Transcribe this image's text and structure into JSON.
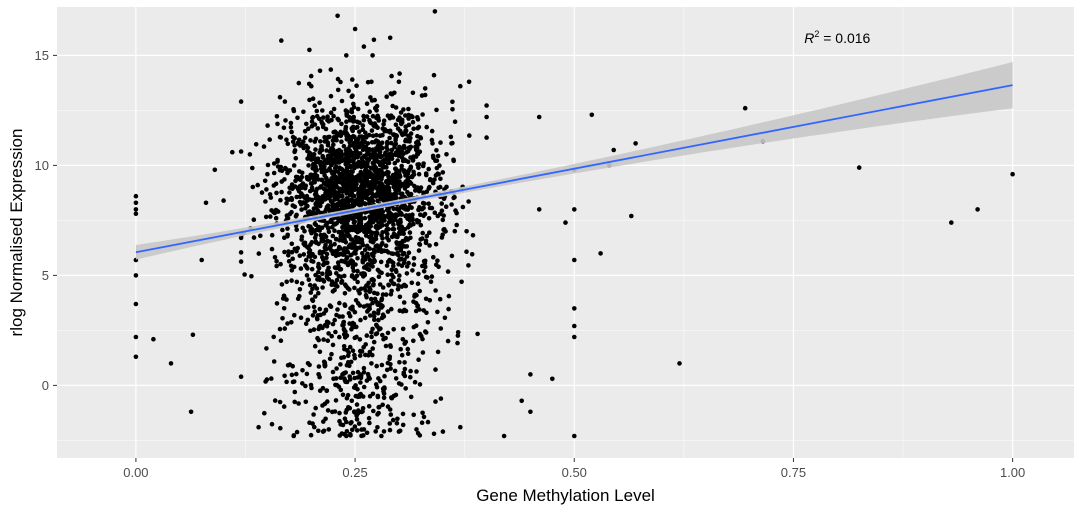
{
  "chart_data": {
    "type": "scatter",
    "xlabel": "Gene Methylation Level",
    "ylabel": "rlog Normalised Expression",
    "xlim": [
      -0.09,
      1.07
    ],
    "ylim": [
      -3.3,
      17.2
    ],
    "x_ticks": [
      0.0,
      0.25,
      0.5,
      0.75,
      1.0
    ],
    "x_tick_labels": [
      "0.00",
      "0.25",
      "0.50",
      "0.75",
      "1.00"
    ],
    "y_ticks": [
      0,
      5,
      10,
      15
    ],
    "y_tick_labels": [
      "0",
      "5",
      "10",
      "15"
    ],
    "grid": true,
    "background": "#ebebeb",
    "point_color": "#000000",
    "fit_line_color": "#3366ff",
    "ribbon_color": "#c8c8c8",
    "regression": {
      "method": "linear",
      "intercept": 6.05,
      "slope": 7.6,
      "x_range": [
        0.0,
        1.0
      ],
      "ci_halfwidth_at_x0": 0.33,
      "ci_halfwidth_at_x1": 1.05
    },
    "annotation": {
      "label": "R",
      "superscript": "2",
      "value": " = 0.016",
      "x": 0.8,
      "y": 15.8
    },
    "cluster": {
      "n": 2600,
      "x_center": 0.255,
      "x_sd": 0.045,
      "y_center": 8.9,
      "y_sd": 1.9
    },
    "points": [
      [
        0.0,
        8.6
      ],
      [
        0.0,
        8.3
      ],
      [
        0.0,
        8.0
      ],
      [
        0.0,
        7.8
      ],
      [
        0.0,
        5.7
      ],
      [
        0.0,
        5.0
      ],
      [
        0.0,
        3.7
      ],
      [
        0.0,
        2.2
      ],
      [
        0.0,
        1.3
      ],
      [
        0.02,
        2.1
      ],
      [
        0.04,
        1.0
      ],
      [
        0.063,
        -1.2
      ],
      [
        0.065,
        2.3
      ],
      [
        0.075,
        5.7
      ],
      [
        0.08,
        8.3
      ],
      [
        0.09,
        9.8
      ],
      [
        0.1,
        8.4
      ],
      [
        0.11,
        10.6
      ],
      [
        0.13,
        10.5
      ],
      [
        0.14,
        -1.9
      ],
      [
        0.15,
        9.6
      ],
      [
        0.16,
        7.6
      ],
      [
        0.17,
        12.9
      ],
      [
        0.2,
        13.6
      ],
      [
        0.21,
        14.3
      ],
      [
        0.22,
        12.0
      ],
      [
        0.23,
        16.8
      ],
      [
        0.24,
        15.0
      ],
      [
        0.25,
        16.2
      ],
      [
        0.26,
        15.4
      ],
      [
        0.27,
        15.0
      ],
      [
        0.29,
        15.8
      ],
      [
        0.3,
        13.8
      ],
      [
        0.33,
        13.5
      ],
      [
        0.34,
        14.1
      ],
      [
        0.37,
        13.6
      ],
      [
        0.38,
        13.8
      ],
      [
        0.33,
        13.2
      ],
      [
        0.36,
        11.0
      ],
      [
        0.18,
        -2.3
      ],
      [
        0.22,
        -2.0
      ],
      [
        0.24,
        -2.3
      ],
      [
        0.26,
        -2.0
      ],
      [
        0.28,
        -2.3
      ],
      [
        0.3,
        -2.1
      ],
      [
        0.32,
        -2.0
      ],
      [
        0.34,
        -2.2
      ],
      [
        0.37,
        -1.9
      ],
      [
        0.4,
        12.2
      ],
      [
        0.42,
        -2.3
      ],
      [
        0.44,
        -0.7
      ],
      [
        0.45,
        0.5
      ],
      [
        0.46,
        8.0
      ],
      [
        0.475,
        0.3
      ],
      [
        0.46,
        12.2
      ],
      [
        0.49,
        7.4
      ],
      [
        0.45,
        -1.2
      ],
      [
        0.5,
        9.8
      ],
      [
        0.5,
        8.0
      ],
      [
        0.5,
        5.7
      ],
      [
        0.5,
        3.5
      ],
      [
        0.5,
        2.7
      ],
      [
        0.5,
        2.2
      ],
      [
        0.5,
        -2.3
      ],
      [
        0.52,
        12.3
      ],
      [
        0.53,
        6.0
      ],
      [
        0.545,
        10.7
      ],
      [
        0.54,
        10.0
      ],
      [
        0.565,
        7.7
      ],
      [
        0.57,
        11.0
      ],
      [
        0.62,
        1.0
      ],
      [
        0.695,
        12.6
      ],
      [
        0.715,
        11.1
      ],
      [
        0.825,
        9.9
      ],
      [
        0.93,
        7.4
      ],
      [
        0.96,
        8.0
      ],
      [
        1.0,
        9.6
      ]
    ]
  }
}
